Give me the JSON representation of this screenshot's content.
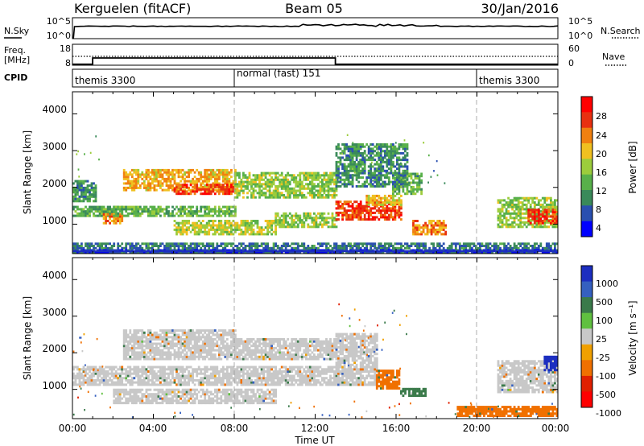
{
  "header": {
    "radar": "Kerguelen (fitACF)",
    "beam": "Beam 05",
    "date": "30/Jan/2016"
  },
  "sky_panel": {
    "label": "N.Sky",
    "ticks_left": [
      "10^5",
      "10^0"
    ],
    "ticks_right": [
      "10^5",
      "10^0"
    ],
    "right_label": "N.Search"
  },
  "freq_panel": {
    "label_line1": "Freq.",
    "label_line2": "[MHz]",
    "ticks_left": [
      "18",
      "8"
    ],
    "ticks_right": [
      "60",
      "0"
    ],
    "right_label": "Nave"
  },
  "cpid_panel": {
    "label": "CPID",
    "segments": [
      {
        "label": "themis 3300",
        "start_hour": 0,
        "end_hour": 8
      },
      {
        "label": "normal (fast) 151",
        "start_hour": 8,
        "end_hour": 20
      },
      {
        "label": "themis 3300",
        "start_hour": 20,
        "end_hour": 24
      }
    ]
  },
  "power_panel": {
    "ylabel": "Slant Range [km]",
    "yticks": [
      "4000",
      "3000",
      "2000",
      "1000"
    ],
    "colorbar_label": "Power [dB]",
    "colorbar_ticks": [
      "28",
      "24",
      "20",
      "16",
      "12",
      "8",
      "4"
    ]
  },
  "velocity_panel": {
    "ylabel": "Slant Range [km]",
    "yticks": [
      "4000",
      "3000",
      "2000",
      "1000"
    ],
    "colorbar_label": "Velocity [m s⁻¹]",
    "colorbar_ticks": [
      "1000",
      "500",
      "100",
      "25",
      "-25",
      "-100",
      "-500",
      "-1000"
    ]
  },
  "xaxis": {
    "label": "Time UT",
    "ticks": [
      "00:00",
      "04:00",
      "08:00",
      "12:00",
      "16:00",
      "20:00",
      "00:00"
    ]
  },
  "chart_data": {
    "type": "heatmap",
    "title": "Kerguelen (fitACF)  Beam 05  30/Jan/2016",
    "xlabel": "Time UT",
    "ylabel": "Slant Range [km]",
    "xlim_hours": [
      0,
      24
    ],
    "ylim_km": [
      200,
      4600
    ],
    "frequency_mhz_steps": [
      {
        "start_hour": 0,
        "end_hour": 1,
        "freq": 10
      },
      {
        "start_hour": 1,
        "end_hour": 13,
        "freq": 13
      },
      {
        "start_hour": 13,
        "end_hour": 24,
        "freq": 10
      }
    ],
    "power_colorscale": [
      "#0000ff",
      "#2a4fb0",
      "#3a8a5a",
      "#58b04a",
      "#9ccc3c",
      "#f0c020",
      "#f08010",
      "#e83010",
      "#ff0000"
    ],
    "velocity_colorscale": [
      "#1c2ec0",
      "#3560c0",
      "#3a7a4a",
      "#60c040",
      "#c8c8c8",
      "#f0a000",
      "#f07000",
      "#e02000",
      "#ff0000"
    ],
    "power_bands": [
      {
        "t0": 0.0,
        "t1": 1.2,
        "r0": 1600,
        "r1": 2200,
        "level": 8
      },
      {
        "t0": 2.5,
        "t1": 8.0,
        "r0": 1900,
        "r1": 2500,
        "level": 20
      },
      {
        "t0": 5.0,
        "t1": 8.0,
        "r0": 1800,
        "r1": 2100,
        "level": 26
      },
      {
        "t0": 8.0,
        "t1": 13.0,
        "r0": 1700,
        "r1": 2400,
        "level": 14
      },
      {
        "t0": 0.0,
        "t1": 2.5,
        "r0": 1200,
        "r1": 1500,
        "level": 10
      },
      {
        "t0": 1.5,
        "t1": 2.5,
        "r0": 1000,
        "r1": 1300,
        "level": 22
      },
      {
        "t0": 2.0,
        "t1": 8.0,
        "r0": 1200,
        "r1": 1500,
        "level": 12
      },
      {
        "t0": 5.0,
        "t1": 10.0,
        "r0": 700,
        "r1": 1100,
        "level": 16
      },
      {
        "t0": 10.0,
        "t1": 13.0,
        "r0": 900,
        "r1": 1300,
        "level": 14
      },
      {
        "t0": 13.0,
        "t1": 16.2,
        "r0": 1100,
        "r1": 1600,
        "level": 26
      },
      {
        "t0": 14.5,
        "t1": 16.2,
        "r0": 1500,
        "r1": 1800,
        "level": 18
      },
      {
        "t0": 15.8,
        "t1": 17.3,
        "r0": 1800,
        "r1": 2400,
        "level": 12
      },
      {
        "t0": 16.8,
        "t1": 18.5,
        "r0": 700,
        "r1": 1100,
        "level": 22
      },
      {
        "t0": 13.0,
        "t1": 16.5,
        "r0": 2000,
        "r1": 3200,
        "level": 8
      },
      {
        "t0": 21.0,
        "t1": 24.0,
        "r0": 900,
        "r1": 1700,
        "level": 14
      },
      {
        "t0": 22.5,
        "t1": 24.0,
        "r0": 1000,
        "r1": 1400,
        "level": 26
      },
      {
        "t0": 0.0,
        "t1": 24.0,
        "r0": 200,
        "r1": 500,
        "level": 6
      },
      {
        "t0": 0.0,
        "t1": 24.0,
        "r0": 200,
        "r1": 280,
        "level": 3
      }
    ],
    "velocity_bands": [
      {
        "t0": 2.5,
        "t1": 8.0,
        "r0": 1800,
        "r1": 2600,
        "value": 0
      },
      {
        "t0": 8.0,
        "t1": 13.0,
        "r0": 1800,
        "r1": 2400,
        "value": 0
      },
      {
        "t0": 0.0,
        "t1": 13.0,
        "r0": 1100,
        "r1": 1600,
        "value": 0
      },
      {
        "t0": 2.0,
        "t1": 10.0,
        "r0": 600,
        "r1": 1000,
        "value": 0
      },
      {
        "t0": 13.0,
        "t1": 15.0,
        "r0": 1100,
        "r1": 2500,
        "value": 0
      },
      {
        "t0": 15.0,
        "t1": 16.2,
        "r0": 1000,
        "r1": 1500,
        "value": -300
      },
      {
        "t0": 16.2,
        "t1": 17.5,
        "r0": 800,
        "r1": 1000,
        "value": 200
      },
      {
        "t0": 19.0,
        "t1": 24.0,
        "r0": 250,
        "r1": 500,
        "value": -200
      },
      {
        "t0": 21.0,
        "t1": 24.0,
        "r0": 900,
        "r1": 1800,
        "value": 0
      },
      {
        "t0": 23.3,
        "t1": 24.0,
        "r0": 1500,
        "r1": 1900,
        "value": 800
      }
    ]
  }
}
